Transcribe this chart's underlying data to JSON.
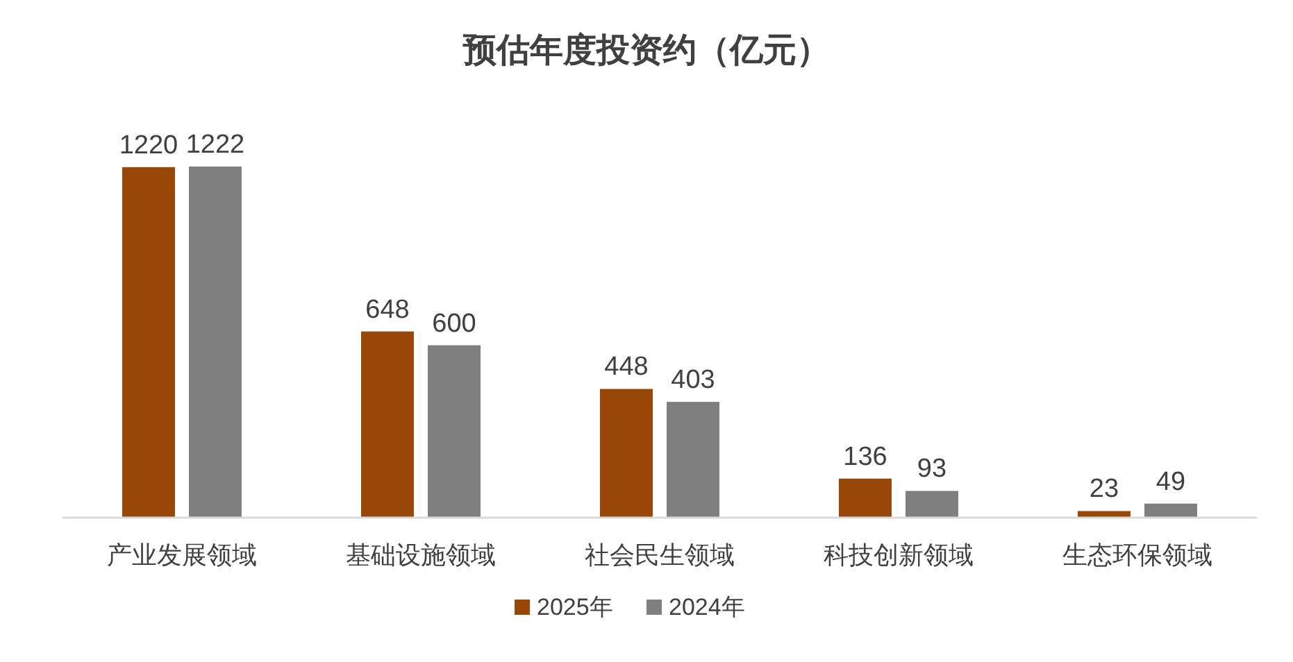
{
  "chart_data": {
    "type": "bar",
    "title": "预估年度投资约（亿元）",
    "categories": [
      "产业发展领域",
      "基础设施领域",
      "社会民生领域",
      "科技创新领域",
      "生态环保领域"
    ],
    "series": [
      {
        "name": "2025年",
        "color": "#974706",
        "values": [
          1220,
          648,
          448,
          136,
          23
        ]
      },
      {
        "name": "2024年",
        "color": "#7f7f7f",
        "values": [
          1222,
          600,
          403,
          93,
          49
        ]
      }
    ],
    "data_labels": true,
    "legend": "bottom"
  }
}
